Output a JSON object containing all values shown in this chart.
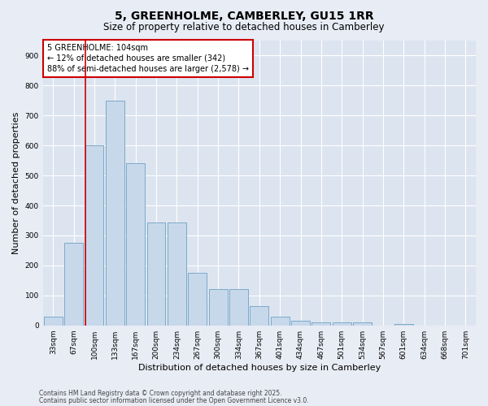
{
  "title_line1": "5, GREENHOLME, CAMBERLEY, GU15 1RR",
  "title_line2": "Size of property relative to detached houses in Camberley",
  "xlabel": "Distribution of detached houses by size in Camberley",
  "ylabel": "Number of detached properties",
  "bar_color": "#c8d8eb",
  "bar_edge_color": "#7aaac8",
  "background_color": "#e8ecf5",
  "plot_bg_color": "#dce4f0",
  "grid_color": "#ffffff",
  "annotation_box_color": "#cc0000",
  "vline_color": "#cc0000",
  "categories": [
    "33sqm",
    "67sqm",
    "100sqm",
    "133sqm",
    "167sqm",
    "200sqm",
    "234sqm",
    "267sqm",
    "300sqm",
    "334sqm",
    "367sqm",
    "401sqm",
    "434sqm",
    "467sqm",
    "501sqm",
    "534sqm",
    "567sqm",
    "601sqm",
    "634sqm",
    "668sqm",
    "701sqm"
  ],
  "values": [
    28,
    275,
    600,
    750,
    540,
    343,
    343,
    175,
    120,
    120,
    65,
    28,
    15,
    10,
    10,
    10,
    0,
    5,
    0,
    0,
    0
  ],
  "vline_bar_index": 2,
  "annotation_text": "5 GREENHOLME: 104sqm\n← 12% of detached houses are smaller (342)\n88% of semi-detached houses are larger (2,578) →",
  "ylim": [
    0,
    950
  ],
  "yticks": [
    0,
    100,
    200,
    300,
    400,
    500,
    600,
    700,
    800,
    900
  ],
  "footer_line1": "Contains HM Land Registry data © Crown copyright and database right 2025.",
  "footer_line2": "Contains public sector information licensed under the Open Government Licence v3.0.",
  "title_fontsize": 10,
  "subtitle_fontsize": 8.5,
  "tick_fontsize": 6.5,
  "axis_label_fontsize": 8,
  "annotation_fontsize": 7,
  "footer_fontsize": 5.5
}
